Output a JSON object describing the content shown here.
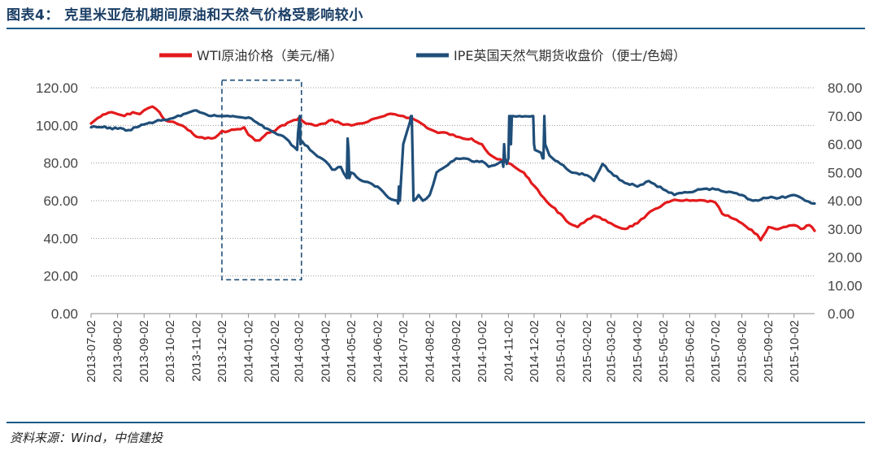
{
  "figure": {
    "title": "图表4：  克里米亚危机期间原油和天然气价格受影响较小",
    "source": "资料来源：Wind，中信建投"
  },
  "chart_data": {
    "type": "line",
    "legend_position": "top",
    "grid": "horizontal-dotted",
    "ylim_left": [
      0,
      120
    ],
    "ylim_right": [
      0,
      80
    ],
    "yticks_left": [
      "0.00",
      "20.00",
      "40.00",
      "60.00",
      "80.00",
      "100.00",
      "120.00"
    ],
    "yticks_right": [
      "0.00",
      "10.00",
      "20.00",
      "30.00",
      "40.00",
      "50.00",
      "60.00",
      "70.00",
      "80.00"
    ],
    "xticks": [
      "2013-07-02",
      "2013-08-02",
      "2013-09-02",
      "2013-10-02",
      "2013-11-02",
      "2013-12-02",
      "2014-01-02",
      "2014-02-02",
      "2014-03-02",
      "2014-04-02",
      "2014-05-02",
      "2014-06-02",
      "2014-07-02",
      "2014-08-02",
      "2014-09-02",
      "2014-10-02",
      "2014-11-02",
      "2014-12-02",
      "2015-01-02",
      "2015-02-02",
      "2015-03-02",
      "2015-04-02",
      "2015-05-02",
      "2015-06-02",
      "2015-07-02",
      "2015-08-02",
      "2015-09-02",
      "2015-10-02"
    ],
    "highlight_period": {
      "start": "2013-12-02",
      "end": "2014-03-05",
      "y_low": 18,
      "y_high": 124,
      "y_axis": "left"
    },
    "series": [
      {
        "name": "WTI原油价格（美元/桶）",
        "axis": "left",
        "color": "#e31a1c",
        "x": [
          "2013-07-02",
          "2013-07-10",
          "2013-07-19",
          "2013-07-26",
          "2013-08-02",
          "2013-08-10",
          "2013-08-20",
          "2013-08-28",
          "2013-09-02",
          "2013-09-06",
          "2013-09-12",
          "2013-09-20",
          "2013-09-26",
          "2013-10-02",
          "2013-10-10",
          "2013-10-20",
          "2013-11-02",
          "2013-11-12",
          "2013-11-20",
          "2013-11-28",
          "2013-12-02",
          "2013-12-10",
          "2013-12-20",
          "2013-12-28",
          "2014-01-02",
          "2014-01-10",
          "2014-01-15",
          "2014-01-24",
          "2014-02-02",
          "2014-02-10",
          "2014-02-20",
          "2014-02-28",
          "2014-03-02",
          "2014-03-10",
          "2014-03-20",
          "2014-04-02",
          "2014-04-10",
          "2014-04-20",
          "2014-05-02",
          "2014-05-12",
          "2014-05-22",
          "2014-06-02",
          "2014-06-10",
          "2014-06-20",
          "2014-07-02",
          "2014-07-10",
          "2014-07-20",
          "2014-08-02",
          "2014-08-12",
          "2014-08-22",
          "2014-09-02",
          "2014-09-10",
          "2014-09-20",
          "2014-10-02",
          "2014-10-10",
          "2014-10-20",
          "2014-11-02",
          "2014-11-12",
          "2014-11-20",
          "2014-12-02",
          "2014-12-10",
          "2014-12-20",
          "2015-01-02",
          "2015-01-12",
          "2015-01-22",
          "2015-02-02",
          "2015-02-10",
          "2015-02-20",
          "2015-03-02",
          "2015-03-10",
          "2015-03-18",
          "2015-04-02",
          "2015-04-10",
          "2015-04-20",
          "2015-05-02",
          "2015-05-12",
          "2015-05-22",
          "2015-06-02",
          "2015-06-10",
          "2015-06-20",
          "2015-07-02",
          "2015-07-10",
          "2015-07-20",
          "2015-08-02",
          "2015-08-10",
          "2015-08-20",
          "2015-08-24",
          "2015-09-02",
          "2015-09-10",
          "2015-09-20",
          "2015-10-02",
          "2015-10-10",
          "2015-10-20",
          "2015-10-26"
        ],
        "y": [
          101,
          104,
          106,
          107,
          106,
          105,
          107,
          106,
          108,
          109,
          110,
          107,
          103,
          102,
          101,
          99,
          94,
          93,
          93,
          95,
          97,
          97,
          98,
          99,
          95,
          92,
          92,
          96,
          97,
          100,
          102,
          103,
          104,
          101,
          100,
          101,
          103,
          101,
          100,
          101,
          102,
          104,
          105,
          106,
          105,
          104,
          102,
          98,
          96,
          96,
          94,
          93,
          93,
          90,
          85,
          82,
          80,
          77,
          75,
          68,
          63,
          58,
          53,
          48,
          46,
          50,
          52,
          50,
          48,
          46,
          45,
          48,
          51,
          55,
          58,
          60,
          60,
          60,
          60,
          60,
          59,
          53,
          51,
          48,
          45,
          42,
          39,
          46,
          45,
          46,
          47,
          45,
          47,
          44
        ]
      },
      {
        "name": "IPE英国天然气期货收盘价（便士/色姆）",
        "axis": "right",
        "color": "#1f4e79",
        "x": [
          "2013-07-02",
          "2013-07-15",
          "2013-08-02",
          "2013-08-15",
          "2013-09-02",
          "2013-09-15",
          "2013-10-02",
          "2013-10-15",
          "2013-11-02",
          "2013-11-10",
          "2013-11-20",
          "2013-12-02",
          "2013-12-15",
          "2014-01-02",
          "2014-01-15",
          "2014-02-02",
          "2014-02-15",
          "2014-02-28",
          "2014-03-01",
          "2014-03-03",
          "2014-03-04",
          "2014-03-06",
          "2014-03-15",
          "2014-04-02",
          "2014-04-10",
          "2014-04-20",
          "2014-04-27",
          "2014-04-28",
          "2014-04-29",
          "2014-04-30",
          "2014-05-02",
          "2014-05-15",
          "2014-06-02",
          "2014-06-15",
          "2014-06-25",
          "2014-06-26",
          "2014-06-27",
          "2014-06-28",
          "2014-07-02",
          "2014-07-10",
          "2014-07-11",
          "2014-07-12",
          "2014-07-13",
          "2014-07-14",
          "2014-07-20",
          "2014-07-25",
          "2014-08-02",
          "2014-08-10",
          "2014-08-20",
          "2014-09-02",
          "2014-09-10",
          "2014-09-20",
          "2014-10-02",
          "2014-10-10",
          "2014-10-20",
          "2014-10-26",
          "2014-10-27",
          "2014-10-28",
          "2014-10-29",
          "2014-10-31",
          "2014-11-02",
          "2014-11-03",
          "2014-11-04",
          "2014-11-05",
          "2014-11-06",
          "2014-11-07",
          "2014-11-15",
          "2014-11-30",
          "2014-12-01",
          "2014-12-02",
          "2014-12-03",
          "2014-12-10",
          "2014-12-12",
          "2014-12-13",
          "2014-12-14",
          "2014-12-15",
          "2014-12-20",
          "2015-01-02",
          "2015-01-15",
          "2015-02-02",
          "2015-02-10",
          "2015-02-20",
          "2015-03-02",
          "2015-03-15",
          "2015-04-02",
          "2015-04-15",
          "2015-05-02",
          "2015-05-15",
          "2015-06-02",
          "2015-06-15",
          "2015-07-02",
          "2015-07-15",
          "2015-08-02",
          "2015-08-15",
          "2015-09-02",
          "2015-09-15",
          "2015-10-02",
          "2015-10-15",
          "2015-10-26"
        ],
        "y": [
          66,
          66,
          65.5,
          65,
          67,
          68,
          69,
          70,
          72,
          71,
          70,
          70,
          70,
          69.5,
          67,
          64,
          62,
          58,
          64,
          70,
          60,
          61,
          58,
          54,
          51,
          52,
          48,
          62,
          58,
          48,
          50,
          47,
          45,
          41,
          40,
          39,
          45,
          40,
          60,
          68,
          70,
          70,
          55,
          40,
          42,
          40,
          42,
          50,
          52,
          55,
          55,
          54,
          54,
          52,
          53,
          54,
          52,
          60,
          55,
          53,
          55,
          70,
          70,
          60,
          70,
          70,
          70,
          70,
          70,
          60,
          58,
          57,
          55,
          55,
          70,
          60,
          56,
          53,
          50,
          49,
          47,
          53,
          50,
          47,
          45,
          47,
          44,
          42,
          43,
          44,
          44,
          43,
          42,
          40,
          41,
          41,
          42,
          40,
          39
        ]
      }
    ]
  }
}
